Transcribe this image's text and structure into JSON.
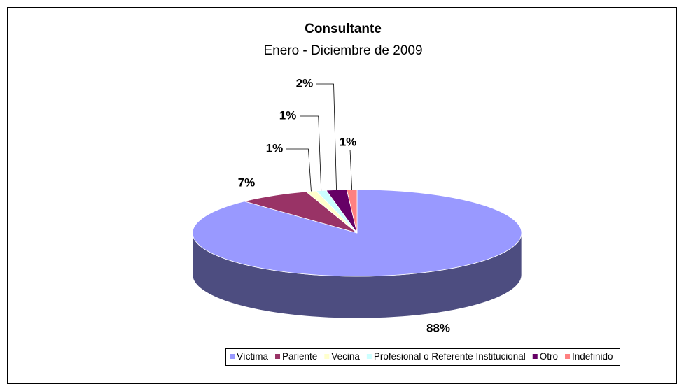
{
  "chart_data": {
    "type": "pie3d",
    "title": "Consultante",
    "subtitle": "Enero - Diciembre de 2009",
    "categories": [
      "Víctima",
      "Pariente",
      "Vecina",
      "Profesional o Referente Institucional",
      "Otro",
      "Indefinido"
    ],
    "values": [
      88,
      7,
      1,
      1,
      2,
      1
    ],
    "value_labels": [
      "88%",
      "7%",
      "1%",
      "1%",
      "2%",
      "1%"
    ],
    "colors": [
      "#9999ff",
      "#993366",
      "#ffffcc",
      "#ccffff",
      "#660066",
      "#ff8080"
    ],
    "legend": "bottom"
  }
}
